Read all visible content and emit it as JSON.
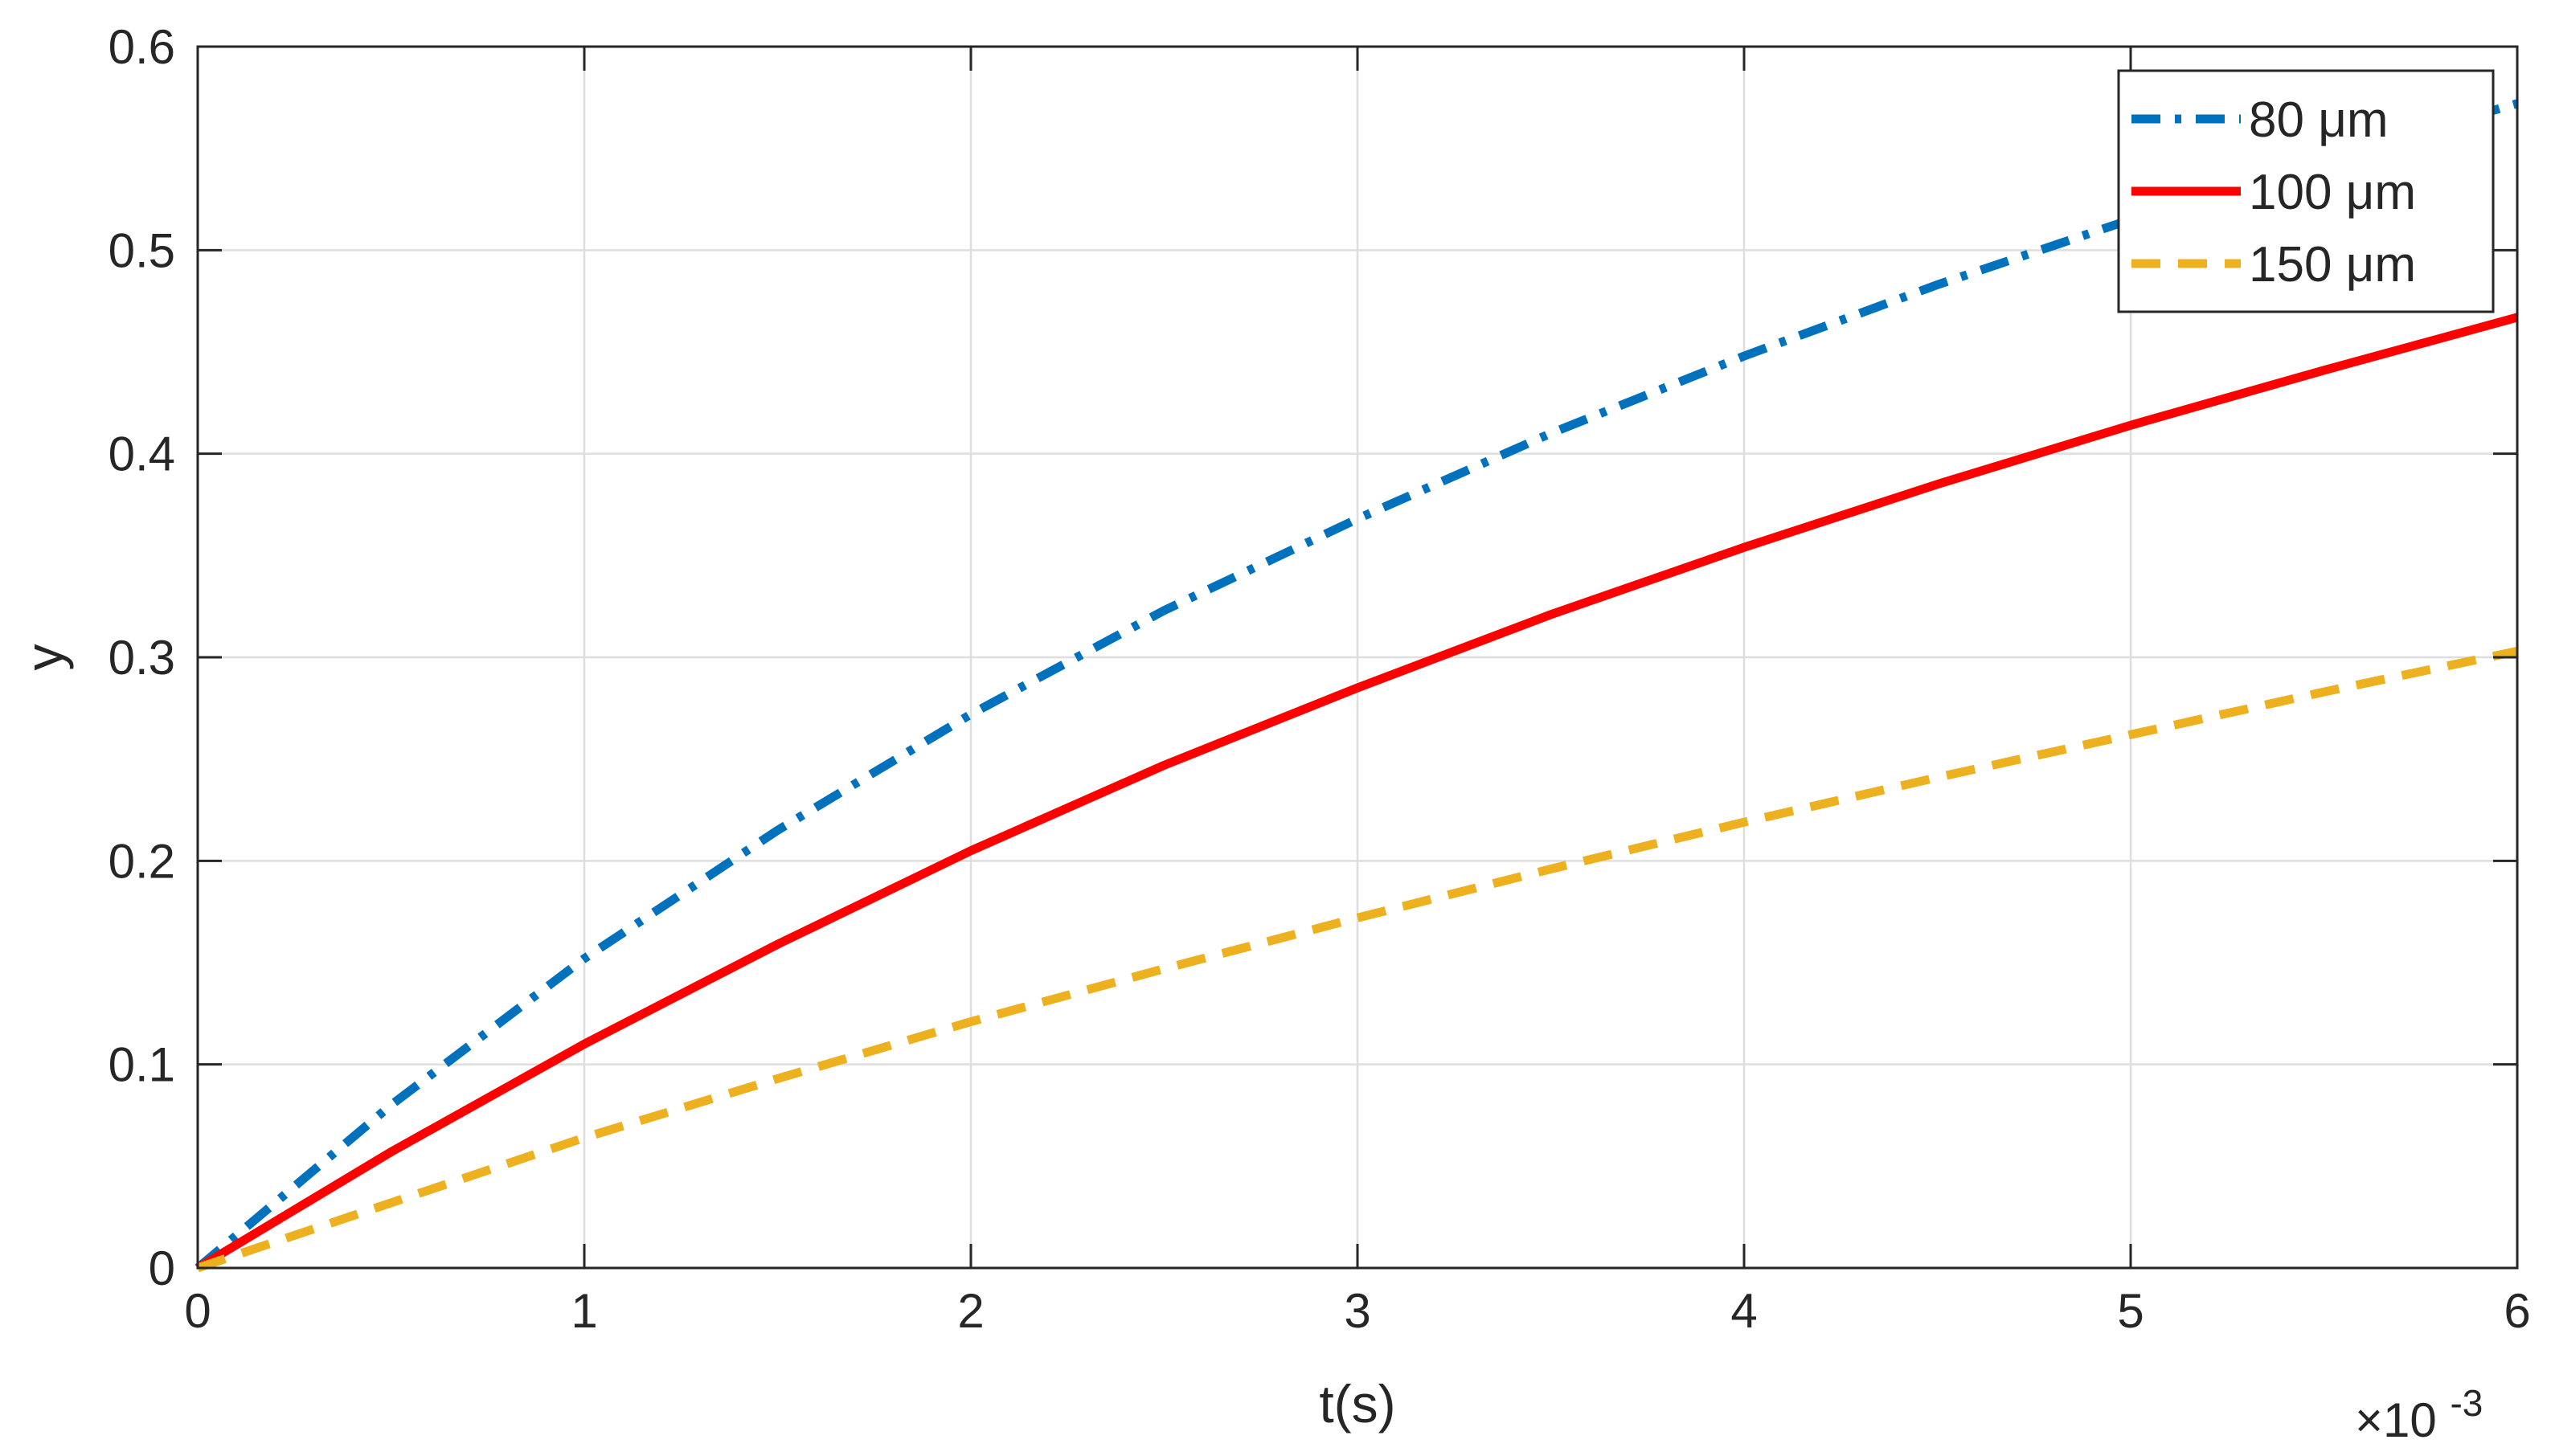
{
  "chart_data": {
    "type": "line",
    "title": "",
    "xlabel": "t(s)",
    "ylabel": "y",
    "x_exponent_label": "×10",
    "x_exponent_power": "-3",
    "x_scale": 0.001,
    "xlim": [
      0,
      6
    ],
    "ylim": [
      0,
      0.6
    ],
    "x_ticks": [
      "0",
      "1",
      "2",
      "3",
      "4",
      "5",
      "6"
    ],
    "y_ticks": [
      "0",
      "0.1",
      "0.2",
      "0.3",
      "0.4",
      "0.5",
      "0.6"
    ],
    "grid": true,
    "legend_position": "top-right",
    "series": [
      {
        "name": "80  μm",
        "color": "#0072BD",
        "style": "dash-dot",
        "x": [
          0,
          0.5,
          1,
          1.5,
          2,
          2.5,
          3,
          3.5,
          4,
          4.5,
          5,
          5.5,
          6
        ],
        "y": [
          0,
          0.08,
          0.152,
          0.215,
          0.272,
          0.323,
          0.368,
          0.41,
          0.448,
          0.483,
          0.515,
          0.545,
          0.572
        ]
      },
      {
        "name": "100  μm",
        "color": "#FF0000",
        "style": "solid",
        "x": [
          0,
          0.5,
          1,
          1.5,
          2,
          2.5,
          3,
          3.5,
          4,
          4.5,
          5,
          5.5,
          6
        ],
        "y": [
          0,
          0.057,
          0.11,
          0.159,
          0.205,
          0.247,
          0.285,
          0.321,
          0.354,
          0.385,
          0.414,
          0.441,
          0.467
        ]
      },
      {
        "name": "150  μm",
        "color": "#EDB120",
        "style": "dashed",
        "x": [
          0,
          0.5,
          1,
          1.5,
          2,
          2.5,
          3,
          3.5,
          4,
          4.5,
          5,
          5.5,
          6
        ],
        "y": [
          0,
          0.032,
          0.064,
          0.093,
          0.121,
          0.147,
          0.172,
          0.196,
          0.219,
          0.241,
          0.262,
          0.283,
          0.303
        ]
      }
    ]
  }
}
